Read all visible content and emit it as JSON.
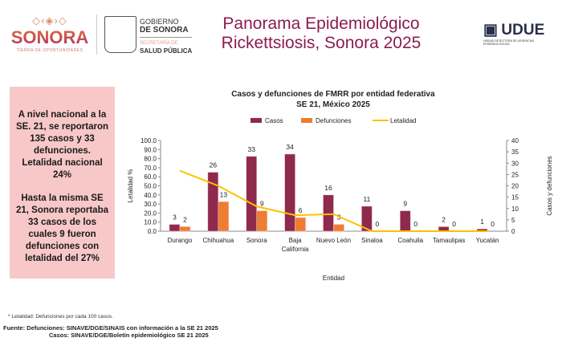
{
  "header": {
    "logo_sonora": {
      "text": "SONORA",
      "tagline": "TIERRA DE OPORTUNIDADES"
    },
    "gobierno": {
      "line1": "GOBIERNO",
      "line2": "DE SONORA",
      "line3": "SECRETARÍA DE",
      "line4": "SALUD PÚBLICA"
    },
    "title_line1": "Panorama Epidemiológico",
    "title_line2": "Rickettsiosis, Sonora 2025",
    "logo_udue": {
      "text": "UDUE",
      "subtitle": "UNIDAD DETECTORA DE URGENCIAS EPIDEMIOLÓGICAS"
    }
  },
  "summary": {
    "para1": "A nivel nacional a la SE. 21, se reportaron 135 casos y 33 defunciones. Letalidad nacional 24%",
    "para2": "Hasta la misma SE 21, Sonora  reportaba 33 casos  de los cuales 9 fueron defunciones con letalidad del 27%",
    "bg_color": "#f8c8c8"
  },
  "chart_data": {
    "type": "bar",
    "title": "Casos y defunciones de FMRR por entidad federativa",
    "subtitle": "SE 21, México 2025",
    "xlabel": "Entidad",
    "ylabel": "Letalidad %",
    "y2label": "Casos y defunciones",
    "categories": [
      "Durango",
      "Chihuahua",
      "Sonora",
      "Baja California",
      "Nuevo León",
      "Sinaloa",
      "Coahuila",
      "Tamaulipas",
      "Yucatán"
    ],
    "series": [
      {
        "name": "Casos",
        "type": "bar",
        "axis": "right",
        "color": "#8e2a4e",
        "values": [
          3,
          26,
          33,
          34,
          16,
          11,
          9,
          2,
          1
        ]
      },
      {
        "name": "Defunciones",
        "type": "bar",
        "axis": "right",
        "color": "#ed7d31",
        "values": [
          2,
          13,
          9,
          6,
          3,
          0,
          0,
          0,
          0
        ]
      },
      {
        "name": "Letalidad",
        "type": "line",
        "axis": "left",
        "color": "#ffc000",
        "values": [
          66.7,
          50.0,
          27.3,
          17.6,
          18.8,
          0,
          0,
          0,
          0
        ]
      }
    ],
    "ylim": [
      0,
      100
    ],
    "y2lim": [
      0,
      40
    ],
    "yticks": [
      "0.0",
      "10.0",
      "20.0",
      "30.0",
      "40.0",
      "50.0",
      "60.0",
      "70.0",
      "80.0",
      "90.0",
      "100.0"
    ],
    "y2ticks": [
      "0",
      "5",
      "10",
      "15",
      "20",
      "25",
      "30",
      "35",
      "40"
    ],
    "legend": "top",
    "grid": false
  },
  "footer": {
    "note": "* Letalidad: Defunciones por cada 100 casos.",
    "source1": "Fuente: Defunciones: SINAVE/DGE/SINAIS con información a la SE 21 2025",
    "source2": "Casos: SINAVE/DGE/Boletín epidemiológico SE 21 2025"
  }
}
